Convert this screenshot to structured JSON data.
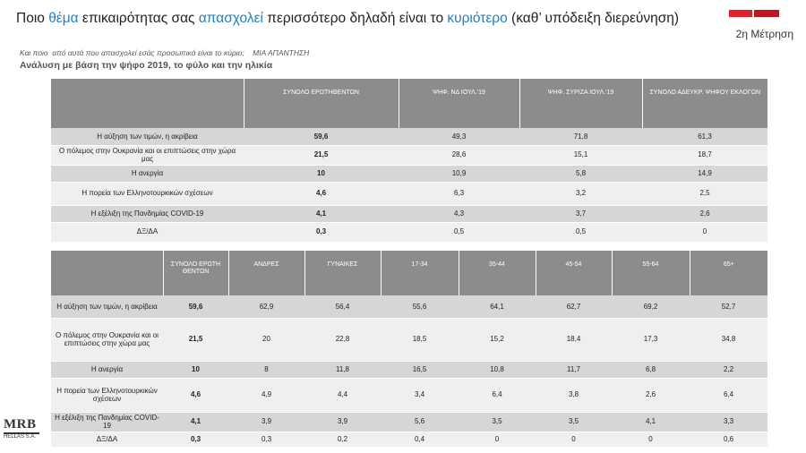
{
  "header": {
    "title_parts": [
      "Ποιο ",
      "θέμα",
      " επικαιρότητας σας ",
      "απασχολεί",
      " περισσότερο δηλαδή είναι το ",
      "κυριότερο",
      " (καθ’ υπόδειξη διερεύνηση)"
    ],
    "wave": "2η Μέτρηση",
    "question": "Και ποιο  από αυτά που απασχολεί εσάς προσωπικά είναι το κύριο;    ΜΙΑ ΑΠΑΝΤΗΣΗ",
    "analysis": "Ανάλυση με βάση την ψήφο 2019, το φύλο και την ηλικία"
  },
  "tables": [
    {
      "columns": [
        "ΣΥΝΟΛΟ ΕΡΩΤΗΘΕΝΤΩΝ",
        "ΨΗΦ. ΝΔ ΙΟΥΛ.'19",
        "ΨΗΦ. ΣΥΡΙΖΑ ΙΟΥΛ.'19",
        "ΣΥΝΟΛΟ ΑΔΕΥΚΡ. ΨΗΦΟΥ ΕΚΛΟΓΩΝ"
      ],
      "rows": [
        [
          "Η αύξηση των τιμών, η ακρίβεια",
          "59,6",
          "49,3",
          "71,8",
          "61,3"
        ],
        [
          "Ο πόλεμος στην Ουκρανία και οι επιπτώσεις στην χώρα μας",
          "21,5",
          "28,6",
          "15,1",
          "18,7"
        ],
        [
          "Η ανεργία",
          "10",
          "10,9",
          "5,8",
          "14,9"
        ],
        [
          "Η πορεία των Ελληνοτουρκικών σχέσεων",
          "4,6",
          "6,3",
          "3,2",
          "2,5"
        ],
        [
          "Η εξέλιξη της Πανδημίας COVID-19",
          "4,1",
          "4,3",
          "3,7",
          "2,6"
        ],
        [
          "ΔΞ/ΔΑ",
          "0,3",
          "0,5",
          "0,5",
          "0"
        ]
      ]
    },
    {
      "columns": [
        "ΣΥΝΟΛΟ ΕΡΩΤΗ ΘΕΝΤΩΝ",
        "ΑΝΔΡΕΣ",
        "ΓΥΝΑΙΚΕΣ",
        "17-34",
        "35-44",
        "45-54",
        "55-64",
        "65+"
      ],
      "rows": [
        [
          "Η αύξηση των τιμών, η ακρίβεια",
          "59,6",
          "62,9",
          "56,4",
          "55,6",
          "64,1",
          "62,7",
          "69,2",
          "52,7"
        ],
        [
          "Ο πόλεμος στην Ουκρανία και οι επιπτώσεις στην χώρα μας",
          "21,5",
          "20",
          "22,8",
          "18,5",
          "15,2",
          "18,4",
          "17,3",
          "34,8"
        ],
        [
          "Η ανεργία",
          "10",
          "8",
          "11,8",
          "16,5",
          "10,8",
          "11,7",
          "6,8",
          "2,2"
        ],
        [
          "Η πορεία των Ελληνοτουρκικών σχέσεων",
          "4,6",
          "4,9",
          "4,4",
          "3,4",
          "6,4",
          "3,8",
          "2,6",
          "6,4"
        ],
        [
          "Η εξέλιξη της Πανδημίας COVID-19",
          "4,1",
          "3,9",
          "3,9",
          "5,6",
          "3,5",
          "3,5",
          "4,1",
          "3,3"
        ],
        [
          "ΔΞ/ΔΑ",
          "0,3",
          "0,3",
          "0,2",
          "0,4",
          "0",
          "0",
          "0",
          "0,6"
        ]
      ]
    }
  ],
  "logo": {
    "name": "MRB",
    "sub": "HELLAS S.A."
  }
}
